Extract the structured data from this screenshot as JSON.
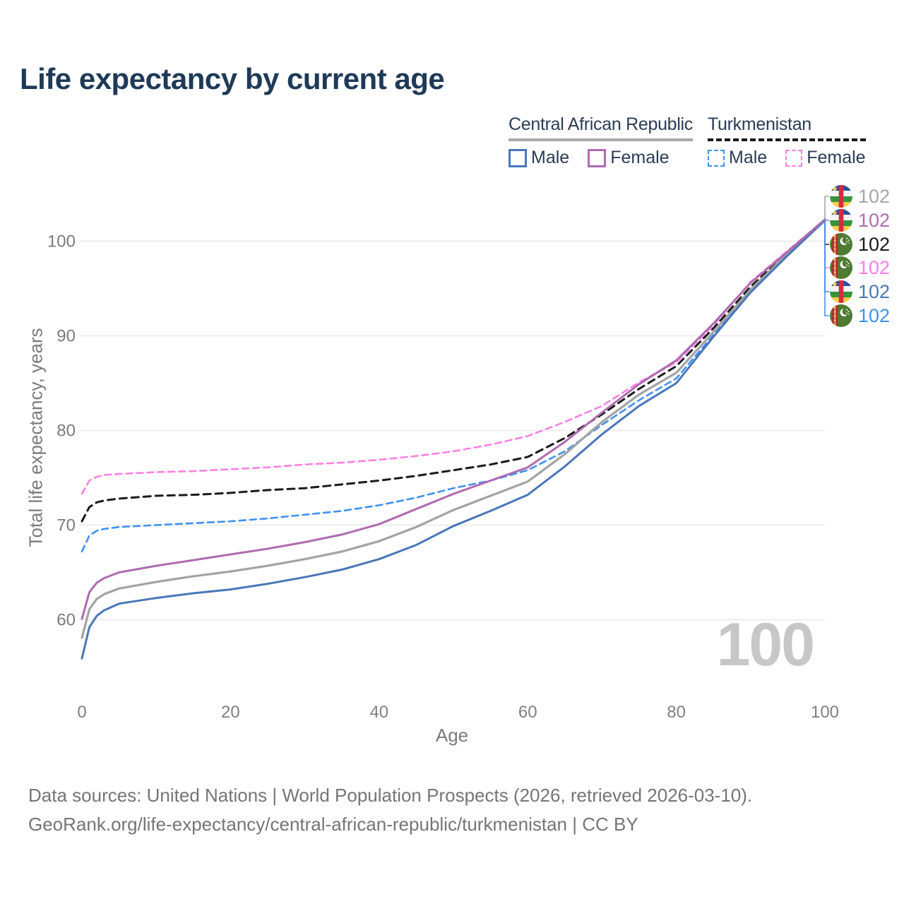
{
  "title": "Life expectancy by current age",
  "legend": {
    "groups": [
      {
        "country": "Central African Republic",
        "line_style": "solid",
        "underline_color": "#a8a8a8",
        "items": [
          {
            "label": "Male",
            "color": "#4a76b8"
          },
          {
            "label": "Female",
            "color": "#ae6bb0"
          }
        ]
      },
      {
        "country": "Turkmenistan",
        "line_style": "dashed",
        "underline_color": "#1a1a1a",
        "items": [
          {
            "label": "Male",
            "color": "#4090f0"
          },
          {
            "label": "Female",
            "color": "#fb80e6"
          }
        ]
      }
    ]
  },
  "end_labels": [
    {
      "series": "Central African Republic total",
      "flag": "caf",
      "value": "102",
      "color": "#a6a6a6"
    },
    {
      "series": "Central African Republic female",
      "flag": "caf",
      "value": "102",
      "color": "#ae6bb0"
    },
    {
      "series": "Turkmenistan total",
      "flag": "tkm",
      "value": "102",
      "color": "#1a1a1a"
    },
    {
      "series": "Turkmenistan female",
      "flag": "tkm",
      "value": "102",
      "color": "#fb80e6"
    },
    {
      "series": "Central African Republic male",
      "flag": "caf",
      "value": "102",
      "color": "#4a76b8"
    },
    {
      "series": "Turkmenistan male",
      "flag": "tkm",
      "value": "102",
      "color": "#4090f0"
    }
  ],
  "age_counter": "100",
  "footer": {
    "line1": "Data sources: United Nations | World Population Prospects (2026, retrieved 2026-03-10).",
    "line2": "GeoRank.org/life-expectancy/central-african-republic/turkmenistan | CC BY"
  },
  "chart_data": {
    "type": "line",
    "title": "Life expectancy by current age",
    "xlabel": "Age",
    "ylabel": "Total life expectancy, years",
    "xlim": [
      0,
      100
    ],
    "ylim": [
      55,
      103
    ],
    "x_ticks": [
      0,
      20,
      40,
      60,
      80,
      100
    ],
    "y_ticks": [
      60,
      70,
      80,
      90,
      100
    ],
    "grid": "horizontal",
    "legend_position": "top-right",
    "x": [
      0,
      1,
      2,
      3,
      5,
      10,
      15,
      20,
      25,
      30,
      35,
      40,
      45,
      50,
      55,
      60,
      65,
      70,
      75,
      80,
      85,
      90,
      95,
      100
    ],
    "series": [
      {
        "name": "Turkmenistan female",
        "color": "#fb80e6",
        "dash": "9,6",
        "width": 2.6,
        "values": [
          73.3,
          74.7,
          75.1,
          75.3,
          75.4,
          75.6,
          75.7,
          75.9,
          76.1,
          76.4,
          76.6,
          76.9,
          77.3,
          77.8,
          78.5,
          79.4,
          80.9,
          82.6,
          85.1,
          87.2,
          91.1,
          95.7,
          99.0,
          102.3
        ]
      },
      {
        "name": "Turkmenistan total",
        "color": "#1a1a1a",
        "dash": "10,7",
        "width": 3,
        "values": [
          70.4,
          71.9,
          72.4,
          72.6,
          72.8,
          73.1,
          73.2,
          73.4,
          73.7,
          73.9,
          74.3,
          74.7,
          75.2,
          75.8,
          76.4,
          77.2,
          79.2,
          81.7,
          84.4,
          86.8,
          90.8,
          95.2,
          98.8,
          102.3
        ]
      },
      {
        "name": "Turkmenistan male",
        "color": "#4090f0",
        "dash": "9,6",
        "width": 2.6,
        "values": [
          67.2,
          68.9,
          69.4,
          69.6,
          69.8,
          70.0,
          70.2,
          70.4,
          70.7,
          71.1,
          71.5,
          72.1,
          72.9,
          73.9,
          74.7,
          75.8,
          77.8,
          80.6,
          83.2,
          85.5,
          90.1,
          94.8,
          98.6,
          102.2
        ]
      },
      {
        "name": "Central African Republic total",
        "color": "#a3a3a3",
        "dash": null,
        "width": 3.2,
        "values": [
          58.1,
          61.1,
          62.2,
          62.7,
          63.3,
          64.0,
          64.6,
          65.1,
          65.7,
          66.4,
          67.2,
          68.3,
          69.8,
          71.6,
          73.1,
          74.6,
          77.5,
          80.9,
          83.8,
          86.1,
          90.4,
          94.9,
          98.7,
          102.3
        ]
      },
      {
        "name": "Central African Republic male",
        "color": "#4a76b8",
        "dash": null,
        "width": 3,
        "values": [
          55.9,
          59.2,
          60.4,
          61.0,
          61.7,
          62.3,
          62.8,
          63.2,
          63.8,
          64.5,
          65.3,
          66.4,
          67.9,
          69.9,
          71.5,
          73.2,
          76.2,
          79.6,
          82.6,
          85.0,
          89.9,
          94.6,
          98.5,
          102.2
        ]
      },
      {
        "name": "Central African Republic female",
        "color": "#ae6bb0",
        "dash": null,
        "width": 3,
        "values": [
          60.1,
          62.9,
          63.9,
          64.4,
          65.0,
          65.7,
          66.3,
          66.9,
          67.5,
          68.2,
          69.0,
          70.1,
          71.7,
          73.3,
          74.7,
          76.1,
          78.8,
          81.9,
          84.9,
          87.4,
          91.3,
          95.6,
          98.9,
          102.3
        ]
      }
    ]
  }
}
